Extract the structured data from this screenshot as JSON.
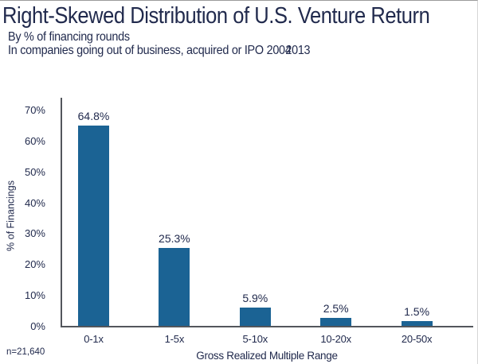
{
  "title": "Right-Skewed Distribution of U.S. Venture Return",
  "subtitle_line1": "By % of financing rounds",
  "subtitle_line2": "In companies going out of business, acquired or IPO",
  "subtitle_year_a": "2004",
  "subtitle_year_b": "2013",
  "footnote": "n=21,640",
  "colors": {
    "bar": "#1B6394",
    "text": "#212A4D",
    "axis": "#53565C"
  },
  "chart_data": {
    "type": "bar",
    "categories": [
      "0-1x",
      "1-5x",
      "5-10x",
      "10-20x",
      "20-50x"
    ],
    "values": [
      64.8,
      25.3,
      5.9,
      2.5,
      1.5
    ],
    "value_labels": [
      "64.8%",
      "25.3%",
      "5.9%",
      "2.5%",
      "1.5%"
    ],
    "title": "Right-Skewed Distribution of U.S. Venture Return",
    "xlabel": "Gross Realized Multiple Range",
    "ylabel": "% of Financings",
    "ylim": [
      0,
      70
    ],
    "ytick_step": 10,
    "ytick_labels": [
      "0%",
      "10%",
      "20%",
      "30%",
      "40%",
      "50%",
      "60%",
      "70%"
    ],
    "grid": false,
    "legend": null,
    "bar_color": "#1B6394"
  }
}
